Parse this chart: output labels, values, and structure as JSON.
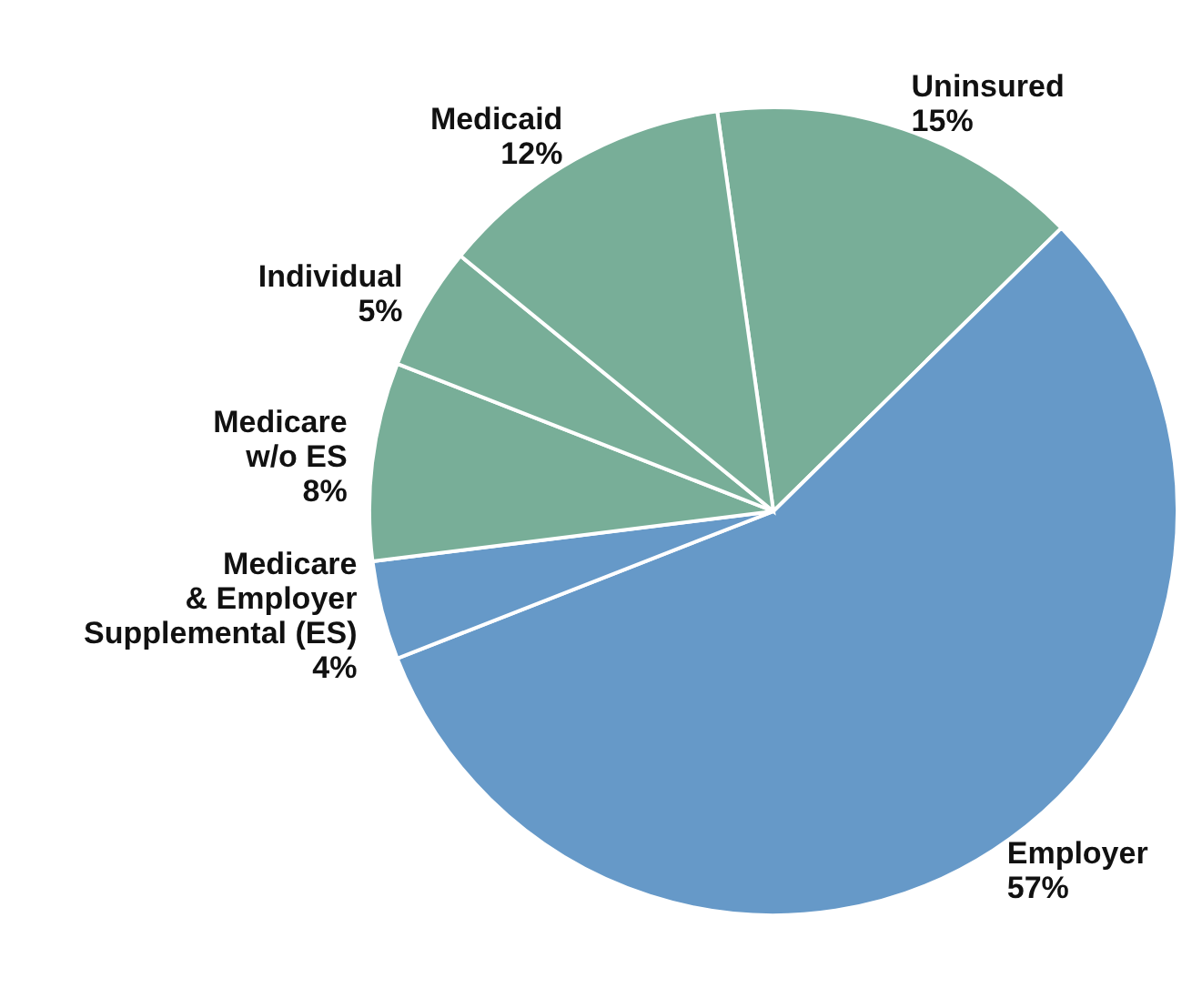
{
  "chart_data": {
    "type": "pie",
    "categories": [
      "Uninsured",
      "Employer",
      "Medicare\n& Employer\nSupplemental (ES)",
      "Medicare\nw/o ES",
      "Individual",
      "Medicaid"
    ],
    "values": [
      15,
      57,
      4,
      8,
      5,
      12
    ],
    "value_labels": [
      "15%",
      "57%",
      "4%",
      "8%",
      "5%",
      "12%"
    ],
    "colors": [
      "#78ae98",
      "#6699c8",
      "#6699c8",
      "#78ae98",
      "#78ae98",
      "#78ae98"
    ],
    "legend": false
  }
}
